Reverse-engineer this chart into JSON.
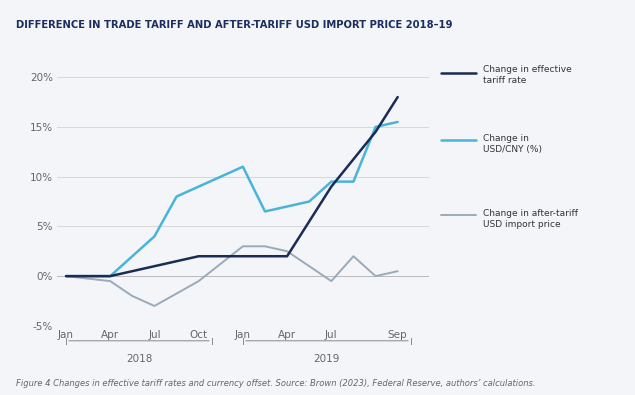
{
  "title": "DIFFERENCE IN TRADE TARIFF AND AFTER-TARIFF USD IMPORT PRICE 2018–19",
  "caption": "Figure 4 Changes in effective tariff rates and currency offset. Source: Brown (2023), Federal Reserve, authors’ calculations.",
  "title_bg_color": "#e4e6ed",
  "chart_bg_color": "#f4f5f9",
  "body_bg_color": "#f4f5f9",
  "title_color": "#1c2d5e",
  "tariff_x": [
    0,
    1,
    2,
    2.5,
    3,
    4,
    5,
    6,
    7,
    7.5
  ],
  "tariff_y": [
    0,
    0,
    1,
    1.5,
    2,
    2,
    2,
    9,
    14.5,
    18
  ],
  "usdcny_x": [
    0,
    1,
    2,
    2.5,
    3,
    4,
    4.5,
    5,
    5.5,
    6,
    6.5,
    7,
    7.5
  ],
  "usdcny_y": [
    0,
    0,
    4,
    8,
    9,
    11,
    6.5,
    7,
    7.5,
    9.5,
    9.5,
    15,
    15.5
  ],
  "import_x": [
    0,
    1,
    1.5,
    2,
    3,
    4,
    4.5,
    5,
    6,
    6.5,
    7,
    7.5
  ],
  "import_y": [
    0,
    -0.5,
    -2,
    -3,
    -0.5,
    3,
    3,
    2.5,
    -0.5,
    2,
    0,
    0.5
  ],
  "tariff_color": "#1a2c56",
  "usdcny_color": "#4ab4d8",
  "import_color": "#9aaab8",
  "ylim": [
    -5,
    22
  ],
  "yticks": [
    -5,
    0,
    5,
    10,
    15,
    20
  ],
  "ytick_labels": [
    "-5%",
    "0%",
    "5%",
    "10%",
    "15%",
    "20%"
  ],
  "x_positions": [
    0,
    1,
    2,
    3,
    4,
    5,
    6,
    7.5
  ],
  "x_labels": [
    "Jan",
    "Apr",
    "Jul",
    "Oct",
    "Jan",
    "Apr",
    "Jul",
    "Sep"
  ],
  "xlim": [
    -0.2,
    8.2
  ],
  "legend_tariff": "Change in effective\ntariff rate",
  "legend_usdcny": "Change in\nUSD/CNY (%)",
  "legend_import": "Change in after-tariff\nUSD import price"
}
